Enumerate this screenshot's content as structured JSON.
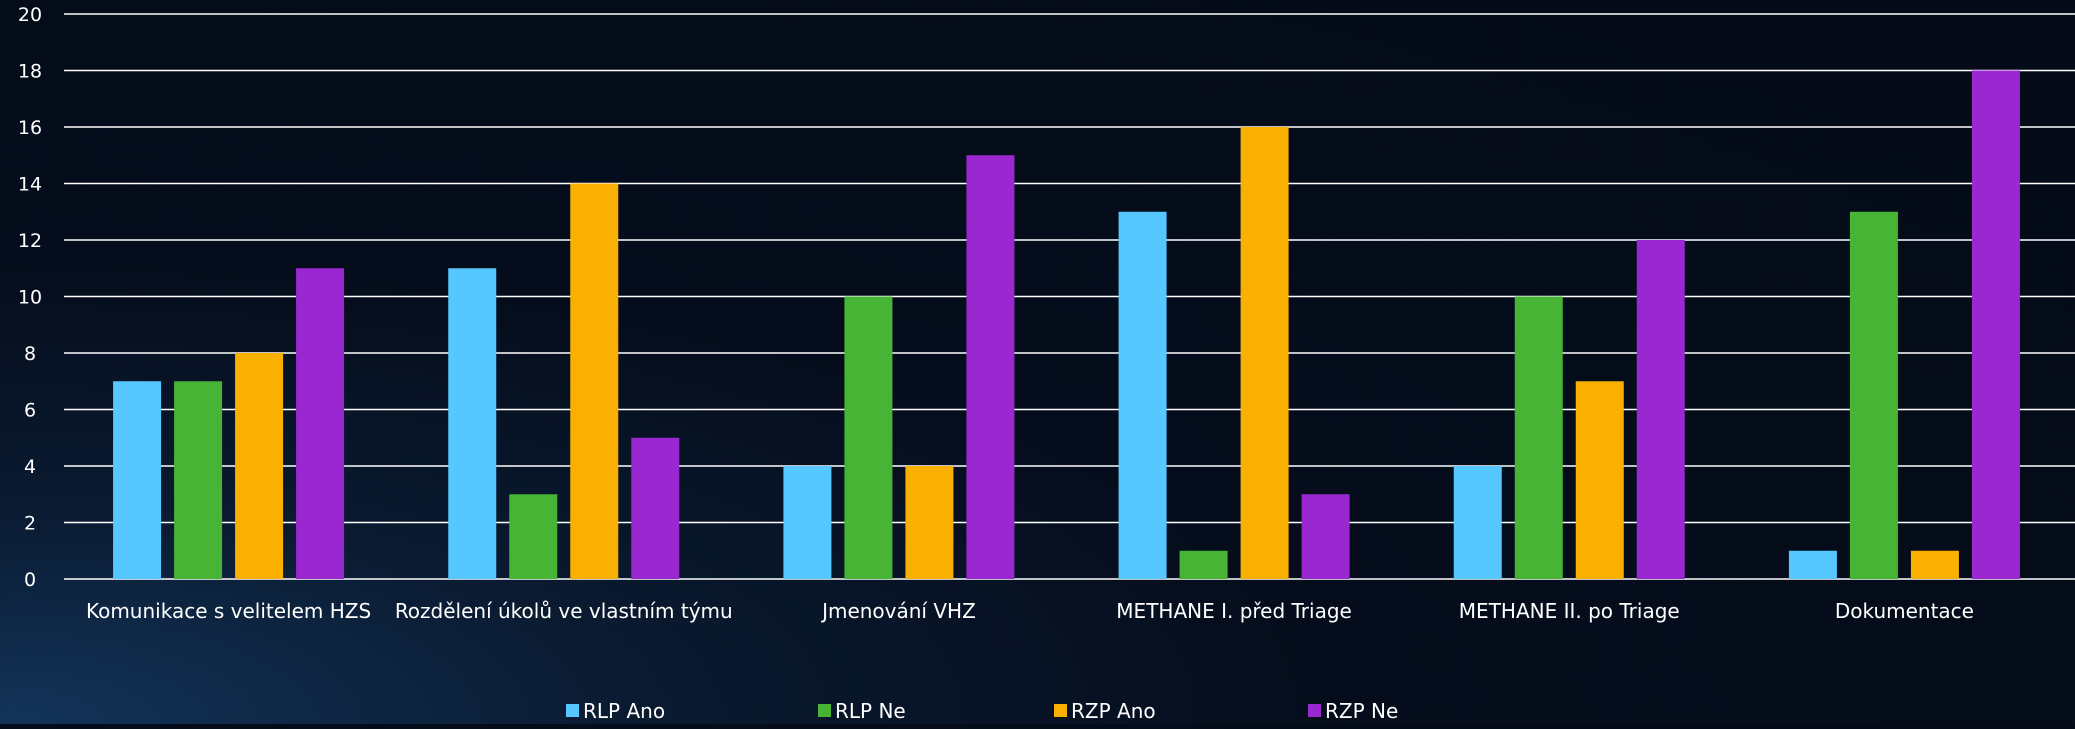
{
  "chart_data": {
    "type": "bar",
    "categories": [
      "Komunikace s velitelem HZS",
      "Rozdělení úkolů ve vlastním týmu",
      "Jmenování VHZ",
      "METHANE I. před Triage",
      "METHANE II. po Triage",
      "Dokumentace"
    ],
    "series": [
      {
        "name": "RLP Ano",
        "color": "#56c8ff",
        "values": [
          7,
          11,
          4,
          13,
          4,
          1
        ]
      },
      {
        "name": "RLP Ne",
        "color": "#48b436",
        "values": [
          7,
          3,
          10,
          1,
          10,
          13
        ]
      },
      {
        "name": "RZP Ano",
        "color": "#f9b000",
        "values": [
          8,
          14,
          4,
          16,
          7,
          1
        ]
      },
      {
        "name": "RZP Ne",
        "color": "#9a28d0",
        "values": [
          11,
          5,
          15,
          3,
          12,
          18
        ]
      }
    ],
    "yticks": [
      0,
      2,
      4,
      6,
      8,
      10,
      12,
      14,
      16,
      18,
      20
    ],
    "ylim": [
      0,
      20
    ],
    "grid": true,
    "legend_position": "bottom-center",
    "gridline_color": "#ffffff"
  }
}
